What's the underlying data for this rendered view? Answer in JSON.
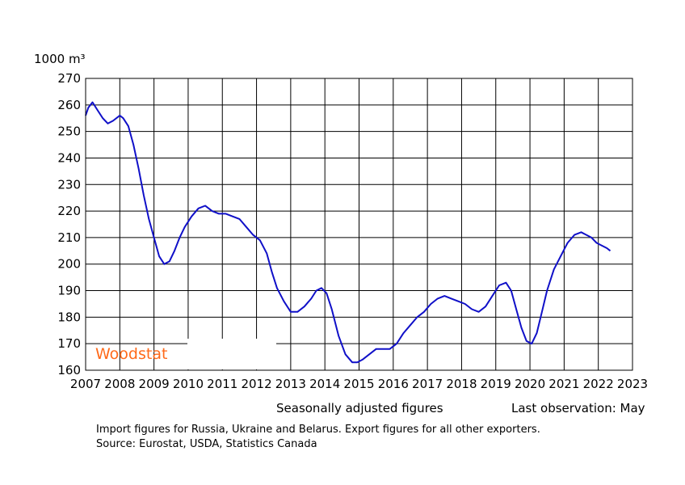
{
  "chart_data": {
    "type": "line",
    "unit_label": "1000 m³",
    "x_ticks": [
      "2007",
      "2008",
      "2009",
      "2010",
      "2011",
      "2012",
      "2013",
      "2014",
      "2015",
      "2016",
      "2017",
      "2018",
      "2019",
      "2020",
      "2021",
      "2022",
      "2023"
    ],
    "y_ticks": [
      "160",
      "170",
      "180",
      "190",
      "200",
      "210",
      "220",
      "230",
      "240",
      "250",
      "260",
      "270"
    ],
    "xlim": [
      2007,
      2023
    ],
    "ylim": [
      160,
      270
    ],
    "grid": true,
    "series": [
      {
        "color": "#1010c8",
        "x": [
          2007.0,
          2007.08,
          2007.2,
          2007.35,
          2007.5,
          2007.65,
          2007.8,
          2008.0,
          2008.1,
          2008.25,
          2008.4,
          2008.55,
          2008.7,
          2008.85,
          2009.0,
          2009.15,
          2009.3,
          2009.45,
          2009.6,
          2009.75,
          2009.9,
          2010.1,
          2010.3,
          2010.5,
          2010.7,
          2010.9,
          2011.1,
          2011.3,
          2011.5,
          2011.7,
          2011.9,
          2012.1,
          2012.3,
          2012.45,
          2012.6,
          2012.8,
          2013.0,
          2013.2,
          2013.4,
          2013.6,
          2013.75,
          2013.9,
          2014.05,
          2014.2,
          2014.4,
          2014.6,
          2014.8,
          2014.95,
          2015.1,
          2015.3,
          2015.5,
          2015.7,
          2015.9,
          2016.1,
          2016.3,
          2016.5,
          2016.7,
          2016.9,
          2017.1,
          2017.3,
          2017.5,
          2017.7,
          2017.9,
          2018.1,
          2018.3,
          2018.5,
          2018.7,
          2018.9,
          2019.1,
          2019.3,
          2019.45,
          2019.6,
          2019.75,
          2019.9,
          2020.05,
          2020.2,
          2020.35,
          2020.5,
          2020.7,
          2020.9,
          2021.1,
          2021.3,
          2021.5,
          2021.65,
          2021.8,
          2021.95,
          2022.1,
          2022.25,
          2022.35
        ],
        "y": [
          256,
          259,
          261,
          258,
          255,
          253,
          254,
          256,
          255,
          252,
          245,
          236,
          226,
          217,
          210,
          203,
          200,
          201,
          205,
          210,
          214,
          218,
          221,
          222,
          220,
          219,
          219,
          218,
          217,
          214,
          211,
          209,
          204,
          197,
          191,
          186,
          182,
          182,
          184,
          187,
          190,
          191,
          189,
          183,
          173,
          166,
          163,
          163,
          164,
          166,
          168,
          168,
          168,
          170,
          174,
          177,
          180,
          182,
          185,
          187,
          188,
          187,
          186,
          185,
          183,
          182,
          184,
          188,
          192,
          193,
          190,
          183,
          176,
          171,
          170,
          174,
          182,
          190,
          198,
          203,
          208,
          211,
          212,
          211,
          210,
          208,
          207,
          206,
          205
        ]
      }
    ]
  },
  "brand": "Woodstat",
  "info": {
    "adjustment": "Seasonally adjusted figures",
    "last_obs": "Last observation: May"
  },
  "notes": {
    "line1": "Import figures for Russia, Ukraine and Belarus. Export figures for all other exporters.",
    "line2": "Source: Eurostat, USDA, Statistics Canada"
  }
}
